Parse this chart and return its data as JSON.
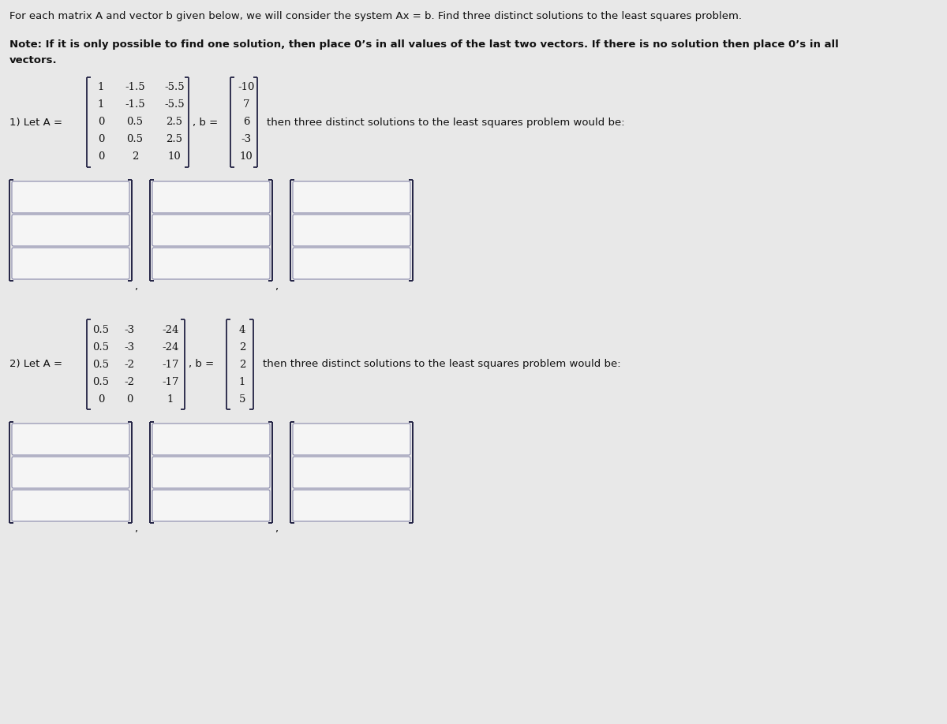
{
  "title_text": "For each matrix A and vector b given below, we will consider the system Ax = b. Find three distinct solutions to the least squares problem.",
  "note_line1": "Note: If it is only possible to find one solution, then place 0’s in all values of the last two vectors. If there is no solution then place 0’s in all",
  "note_line2": "vectors.",
  "A1": [
    [
      "1",
      "-1.5",
      "-5.5"
    ],
    [
      "1",
      "-1.5",
      "-5.5"
    ],
    [
      "0",
      "0.5",
      "2.5"
    ],
    [
      "0",
      "0.5",
      "2.5"
    ],
    [
      "0",
      "2",
      "10"
    ]
  ],
  "b1": [
    "-10",
    "7",
    "6",
    "-3",
    "10"
  ],
  "label1": "1) Let A = ",
  "comma_b": ", b = ",
  "sol_text": "then three distinct solutions to the least squares problem would be:",
  "A2": [
    [
      "0.5",
      "-3",
      "-24"
    ],
    [
      "0.5",
      "-3",
      "-24"
    ],
    [
      "0.5",
      "-2",
      "-17"
    ],
    [
      "0.5",
      "-2",
      "-17"
    ],
    [
      "0",
      "0",
      "1"
    ]
  ],
  "b2": [
    "4",
    "2",
    "2",
    "1",
    "5"
  ],
  "label2": "2) Let A = ",
  "bg_color": "#e8e8e8",
  "box_fill": "#f5f5f5",
  "box_edge": "#8888aa",
  "bracket_color": "#222244",
  "text_color": "#111111",
  "note_weight": "bold",
  "title_fs": 9.5,
  "body_fs": 9.5,
  "matrix_fs": 9.5
}
